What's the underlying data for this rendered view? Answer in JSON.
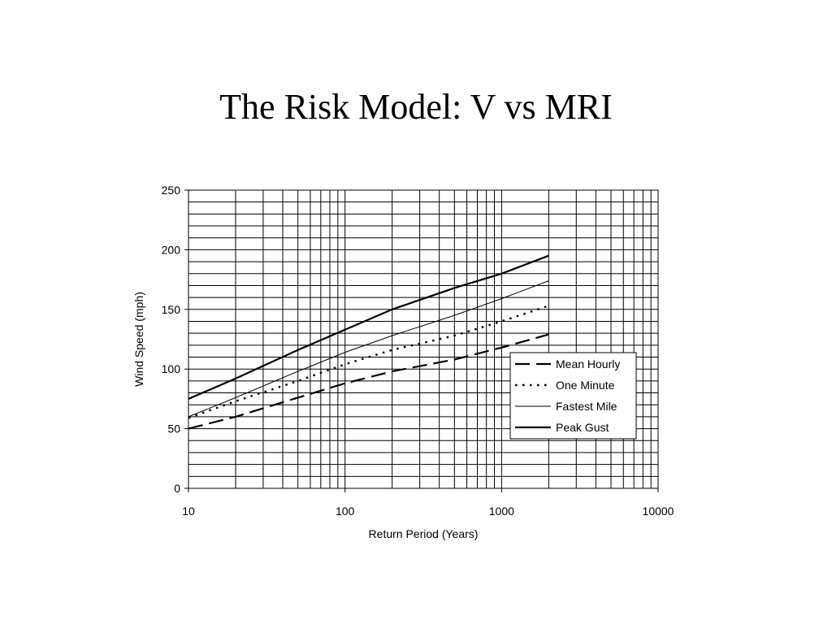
{
  "slide": {
    "title": "The Risk Model: V vs MRI"
  },
  "chart_data": {
    "type": "line",
    "xlabel": "Return Period (Years)",
    "ylabel": "Wind Speed (mph)",
    "xscale": "log",
    "xlim": [
      10,
      10000
    ],
    "ylim": [
      0,
      250
    ],
    "x_ticks": [
      "10",
      "100",
      "1000",
      "10000"
    ],
    "y_ticks": [
      "0",
      "50",
      "100",
      "150",
      "200",
      "250"
    ],
    "y_minor_step": 10,
    "grid": true,
    "legend_position": "right-inside",
    "series": [
      {
        "name": "Mean Hourly",
        "style": "dashed-long",
        "x": [
          10,
          20,
          50,
          100,
          200,
          500,
          1000,
          2000
        ],
        "y": [
          50,
          60,
          76,
          88,
          98,
          108,
          118,
          129
        ]
      },
      {
        "name": "One Minute",
        "style": "dotted",
        "x": [
          10,
          20,
          50,
          100,
          200,
          500,
          1000,
          2000
        ],
        "y": [
          59,
          73,
          90,
          104,
          116,
          128,
          140,
          153
        ]
      },
      {
        "name": "Fastest Mile",
        "style": "thin-solid",
        "x": [
          10,
          20,
          50,
          100,
          200,
          500,
          1000,
          2000
        ],
        "y": [
          60,
          76,
          98,
          114,
          128,
          145,
          159,
          174
        ]
      },
      {
        "name": "Peak Gust",
        "style": "thick-solid",
        "x": [
          10,
          20,
          50,
          100,
          200,
          500,
          1000,
          2000
        ],
        "y": [
          75,
          92,
          116,
          133,
          150,
          168,
          180,
          195
        ]
      }
    ]
  }
}
